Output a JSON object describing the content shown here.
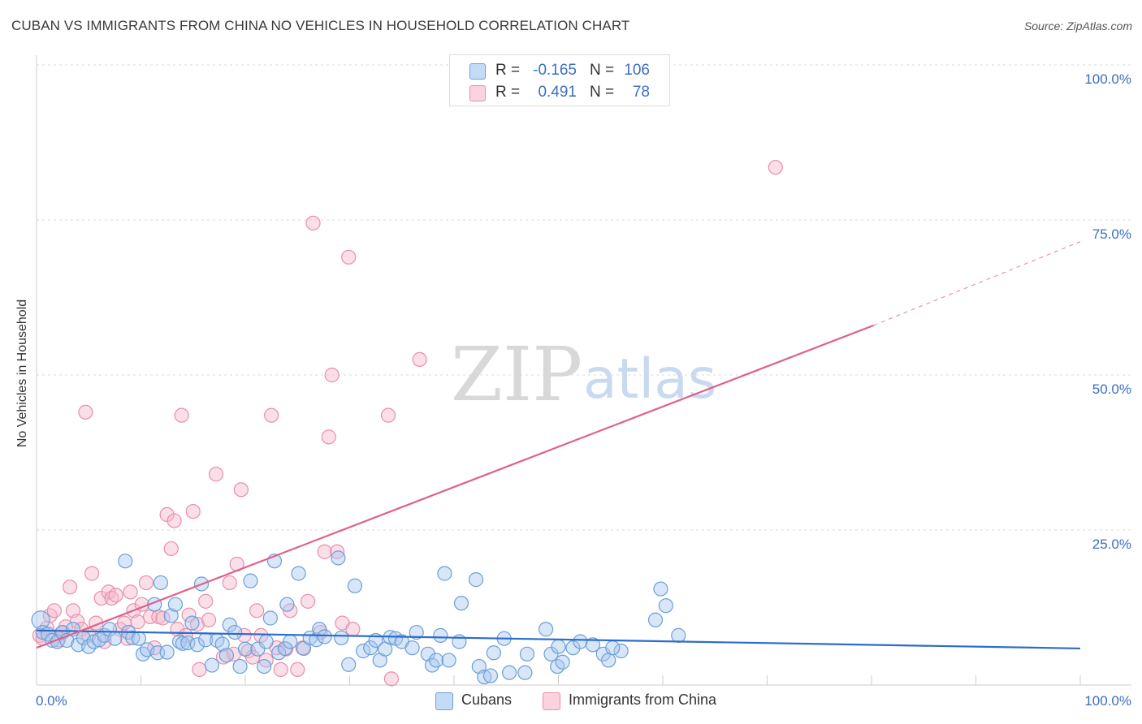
{
  "title": "CUBAN VS IMMIGRANTS FROM CHINA NO VEHICLES IN HOUSEHOLD CORRELATION CHART",
  "source": "Source: ZipAtlas.com",
  "watermark": {
    "zip": "ZIP",
    "atlas": "atlas"
  },
  "legend_top": {
    "rows": [
      {
        "r_label": "R =",
        "r_value": "-0.165",
        "n_label": "N =",
        "n_value": "106",
        "color": "#a8c8f0"
      },
      {
        "r_label": "R =",
        "r_value": "0.491",
        "n_label": "N =",
        "n_value": "78",
        "color": "#f5b8cb"
      }
    ]
  },
  "legend_bottom": {
    "items": [
      {
        "label": "Cubans",
        "color": "#a8c8f0"
      },
      {
        "label": "Immigrants from China",
        "color": "#f5b8cb"
      }
    ]
  },
  "colors": {
    "cubans_fill": "#a8c8f0",
    "cubans_stroke": "#6a9fd8",
    "cubans_line": "#2d6ccb",
    "china_fill": "#f5b8cb",
    "china_stroke": "#e98fab",
    "china_line": "#e0608a",
    "tick_label": "#3b6fc4",
    "grid": "#d8d8d8"
  },
  "chart_data": {
    "type": "scatter",
    "title": "CUBAN VS IMMIGRANTS FROM CHINA NO VEHICLES IN HOUSEHOLD CORRELATION CHART",
    "xlabel": "",
    "ylabel": "No Vehicles in Household",
    "xlim": [
      0,
      100
    ],
    "ylim": [
      0,
      105
    ],
    "x_tick_labels": [
      "0.0%",
      "100.0%"
    ],
    "y_ticks": [
      25,
      50,
      75,
      100
    ],
    "y_tick_labels": [
      "25.0%",
      "50.0%",
      "75.0%",
      "100.0%"
    ],
    "grid": true,
    "series": [
      {
        "name": "Cubans",
        "trend": {
          "x0": 0,
          "y0": 8.8,
          "x1": 100,
          "y1": 5.9
        },
        "points": [
          [
            0.4,
            10.5
          ],
          [
            0.6,
            8.5
          ],
          [
            1.1,
            8.2
          ],
          [
            1.5,
            7.2
          ],
          [
            2.0,
            7.0
          ],
          [
            2.5,
            8.5
          ],
          [
            2.9,
            7.2
          ],
          [
            3.5,
            9.0
          ],
          [
            4.0,
            6.5
          ],
          [
            4.5,
            7.6
          ],
          [
            5.0,
            6.2
          ],
          [
            5.5,
            7.0
          ],
          [
            6.0,
            7.3
          ],
          [
            6.5,
            8.0
          ],
          [
            7.0,
            9.0
          ],
          [
            7.5,
            7.5
          ],
          [
            8.5,
            20.0
          ],
          [
            8.8,
            8.5
          ],
          [
            9.2,
            7.6
          ],
          [
            9.8,
            7.5
          ],
          [
            10.2,
            5.0
          ],
          [
            10.6,
            5.7
          ],
          [
            11.3,
            13.0
          ],
          [
            11.6,
            5.2
          ],
          [
            11.9,
            16.5
          ],
          [
            12.5,
            5.3
          ],
          [
            12.9,
            11.2
          ],
          [
            13.3,
            13.0
          ],
          [
            13.7,
            7.0
          ],
          [
            14.0,
            6.7
          ],
          [
            14.5,
            6.8
          ],
          [
            14.9,
            10.0
          ],
          [
            15.4,
            6.5
          ],
          [
            15.8,
            16.3
          ],
          [
            16.2,
            7.3
          ],
          [
            16.8,
            3.2
          ],
          [
            17.3,
            7.2
          ],
          [
            17.8,
            6.6
          ],
          [
            18.2,
            4.8
          ],
          [
            18.5,
            9.7
          ],
          [
            19.0,
            8.5
          ],
          [
            19.5,
            3.0
          ],
          [
            20.0,
            5.8
          ],
          [
            20.5,
            16.8
          ],
          [
            21.2,
            5.8
          ],
          [
            21.8,
            3.0
          ],
          [
            22.0,
            7.0
          ],
          [
            22.4,
            10.8
          ],
          [
            22.8,
            20.0
          ],
          [
            23.2,
            5.2
          ],
          [
            23.8,
            5.9
          ],
          [
            24.0,
            13.0
          ],
          [
            24.3,
            7.0
          ],
          [
            25.1,
            18.0
          ],
          [
            25.6,
            5.9
          ],
          [
            26.2,
            7.6
          ],
          [
            26.8,
            7.3
          ],
          [
            27.1,
            9.0
          ],
          [
            27.6,
            7.8
          ],
          [
            28.9,
            20.5
          ],
          [
            29.2,
            7.6
          ],
          [
            29.9,
            3.3
          ],
          [
            30.5,
            16.0
          ],
          [
            31.3,
            5.5
          ],
          [
            32.0,
            6.0
          ],
          [
            32.5,
            7.2
          ],
          [
            32.9,
            4.0
          ],
          [
            33.4,
            5.8
          ],
          [
            33.9,
            7.7
          ],
          [
            34.4,
            7.5
          ],
          [
            35.0,
            7.0
          ],
          [
            36.0,
            6.0
          ],
          [
            36.4,
            8.5
          ],
          [
            37.5,
            5.0
          ],
          [
            37.9,
            3.2
          ],
          [
            38.3,
            4.0
          ],
          [
            38.7,
            8.0
          ],
          [
            39.1,
            18.0
          ],
          [
            39.5,
            4.0
          ],
          [
            40.5,
            7.0
          ],
          [
            40.7,
            13.2
          ],
          [
            42.1,
            17.0
          ],
          [
            42.4,
            3.0
          ],
          [
            42.9,
            1.3
          ],
          [
            43.5,
            1.5
          ],
          [
            43.8,
            5.2
          ],
          [
            44.8,
            7.5
          ],
          [
            45.3,
            2.0
          ],
          [
            46.8,
            2.0
          ],
          [
            47.0,
            5.0
          ],
          [
            48.8,
            9.0
          ],
          [
            49.3,
            5.0
          ],
          [
            49.9,
            3.0
          ],
          [
            50.4,
            3.7
          ],
          [
            51.4,
            6.0
          ],
          [
            52.1,
            7.0
          ],
          [
            53.3,
            6.5
          ],
          [
            54.3,
            5.0
          ],
          [
            54.8,
            4.0
          ],
          [
            56.0,
            5.5
          ],
          [
            59.3,
            10.5
          ],
          [
            59.8,
            15.5
          ],
          [
            60.3,
            12.8
          ],
          [
            61.5,
            8.0
          ],
          [
            55.2,
            6.0
          ],
          [
            50.0,
            6.2
          ]
        ]
      },
      {
        "name": "Immigrants from China",
        "trend": {
          "x0": 0,
          "y0": 6.0,
          "x1": 80.2,
          "y1": 58.0,
          "dash_x1": 100,
          "dash_y1": 71.5
        },
        "points": [
          [
            0.3,
            8.0
          ],
          [
            0.6,
            7.5
          ],
          [
            1.0,
            9.2
          ],
          [
            1.3,
            11.2
          ],
          [
            1.7,
            12.0
          ],
          [
            2.1,
            7.3
          ],
          [
            2.4,
            8.4
          ],
          [
            2.8,
            9.4
          ],
          [
            3.2,
            15.8
          ],
          [
            3.5,
            12.0
          ],
          [
            3.9,
            10.3
          ],
          [
            4.3,
            9.0
          ],
          [
            4.7,
            44.0
          ],
          [
            5.0,
            8.0
          ],
          [
            5.3,
            18.0
          ],
          [
            5.7,
            10.0
          ],
          [
            6.2,
            14.0
          ],
          [
            6.5,
            7.0
          ],
          [
            6.9,
            15.0
          ],
          [
            7.2,
            14.0
          ],
          [
            7.6,
            14.5
          ],
          [
            8.0,
            9.0
          ],
          [
            8.4,
            10.0
          ],
          [
            8.7,
            7.5
          ],
          [
            9.0,
            15.0
          ],
          [
            9.3,
            12.0
          ],
          [
            9.7,
            10.2
          ],
          [
            10.1,
            13.0
          ],
          [
            10.5,
            16.5
          ],
          [
            10.9,
            11.0
          ],
          [
            11.3,
            6.0
          ],
          [
            11.7,
            11.0
          ],
          [
            12.1,
            10.8
          ],
          [
            12.5,
            27.5
          ],
          [
            12.9,
            22.0
          ],
          [
            13.2,
            26.5
          ],
          [
            13.5,
            9.0
          ],
          [
            13.9,
            43.5
          ],
          [
            14.3,
            8.0
          ],
          [
            14.6,
            11.3
          ],
          [
            15.0,
            28.0
          ],
          [
            15.4,
            9.8
          ],
          [
            15.6,
            2.5
          ],
          [
            16.2,
            13.5
          ],
          [
            16.5,
            10.5
          ],
          [
            17.2,
            34.0
          ],
          [
            17.9,
            4.5
          ],
          [
            18.5,
            16.5
          ],
          [
            18.9,
            5.0
          ],
          [
            19.2,
            19.5
          ],
          [
            19.6,
            31.5
          ],
          [
            19.9,
            8.0
          ],
          [
            20.3,
            5.5
          ],
          [
            20.7,
            4.5
          ],
          [
            21.1,
            12.0
          ],
          [
            21.5,
            8.0
          ],
          [
            22.0,
            4.0
          ],
          [
            22.5,
            43.5
          ],
          [
            23.0,
            6.0
          ],
          [
            23.4,
            2.5
          ],
          [
            23.9,
            5.8
          ],
          [
            24.3,
            12.0
          ],
          [
            25.0,
            2.5
          ],
          [
            25.5,
            6.0
          ],
          [
            26.0,
            13.5
          ],
          [
            26.5,
            74.5
          ],
          [
            27.2,
            8.5
          ],
          [
            27.6,
            21.5
          ],
          [
            28.0,
            40.0
          ],
          [
            28.3,
            50.0
          ],
          [
            28.8,
            21.5
          ],
          [
            29.3,
            10.0
          ],
          [
            29.9,
            69.0
          ],
          [
            30.3,
            9.0
          ],
          [
            33.7,
            43.5
          ],
          [
            36.7,
            52.5
          ],
          [
            70.8,
            83.5
          ],
          [
            34.0,
            1.0
          ]
        ]
      }
    ]
  }
}
